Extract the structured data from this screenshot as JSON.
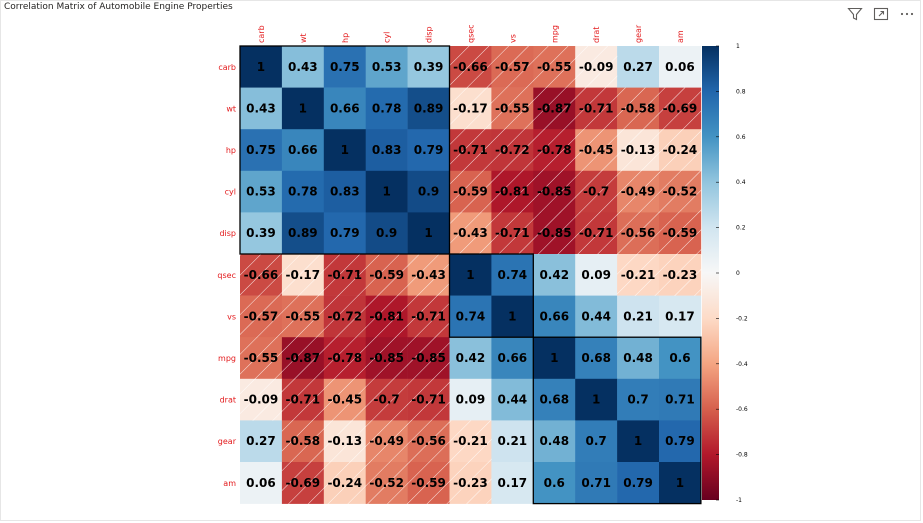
{
  "visual": {
    "title": "Correlation Matrix of Automobile Engine Properties",
    "icons": [
      "filter-icon",
      "focus-mode-icon",
      "more-options-icon"
    ]
  },
  "colors": {
    "neg_strong": "#67001f",
    "neg_mid": "#d6604d",
    "neutral": "#f7f7f7",
    "pos_mid": "#4393c3",
    "pos_strong": "#053061",
    "label": "#e31a1c",
    "cluster_border": "#000000"
  },
  "chart_data": {
    "type": "heatmap",
    "title": "Correlation Matrix of Automobile Engine Properties",
    "variables": [
      "carb",
      "wt",
      "hp",
      "cyl",
      "disp",
      "qsec",
      "vs",
      "mpg",
      "drat",
      "gear",
      "am"
    ],
    "matrix": [
      [
        1,
        0.43,
        0.75,
        0.53,
        0.39,
        -0.66,
        -0.57,
        -0.55,
        -0.09,
        0.27,
        0.06
      ],
      [
        0.43,
        1,
        0.66,
        0.78,
        0.89,
        -0.17,
        -0.55,
        -0.87,
        -0.71,
        -0.58,
        -0.69
      ],
      [
        0.75,
        0.66,
        1,
        0.83,
        0.79,
        -0.71,
        -0.72,
        -0.78,
        -0.45,
        -0.13,
        -0.24
      ],
      [
        0.53,
        0.78,
        0.83,
        1,
        0.9,
        -0.59,
        -0.81,
        -0.85,
        -0.7,
        -0.49,
        -0.52
      ],
      [
        0.39,
        0.89,
        0.79,
        0.9,
        1,
        -0.43,
        -0.71,
        -0.85,
        -0.71,
        -0.56,
        -0.59
      ],
      [
        -0.66,
        -0.17,
        -0.71,
        -0.59,
        -0.43,
        1,
        0.74,
        0.42,
        0.09,
        -0.21,
        -0.23
      ],
      [
        -0.57,
        -0.55,
        -0.72,
        -0.81,
        -0.71,
        0.74,
        1,
        0.66,
        0.44,
        0.21,
        0.17
      ],
      [
        -0.55,
        -0.87,
        -0.78,
        -0.85,
        -0.85,
        0.42,
        0.66,
        1,
        0.68,
        0.48,
        0.6
      ],
      [
        -0.09,
        -0.71,
        -0.45,
        -0.7,
        -0.71,
        0.09,
        0.44,
        0.68,
        1,
        0.7,
        0.71
      ],
      [
        0.27,
        -0.58,
        -0.13,
        -0.49,
        -0.56,
        -0.21,
        0.21,
        0.48,
        0.7,
        1,
        0.79
      ],
      [
        0.06,
        -0.69,
        -0.24,
        -0.52,
        -0.59,
        -0.23,
        0.17,
        0.6,
        0.71,
        0.79,
        1
      ]
    ],
    "clusters": [
      {
        "start": 0,
        "end": 4
      },
      {
        "start": 5,
        "end": 6
      },
      {
        "start": 7,
        "end": 10
      }
    ],
    "negative_hatching": true,
    "colorbar": {
      "range": [
        -1,
        1
      ],
      "ticks": [
        1,
        0.8,
        0.6,
        0.4,
        0.2,
        0,
        -0.2,
        -0.4,
        -0.6,
        -0.8,
        -1
      ],
      "placement": "right"
    }
  }
}
